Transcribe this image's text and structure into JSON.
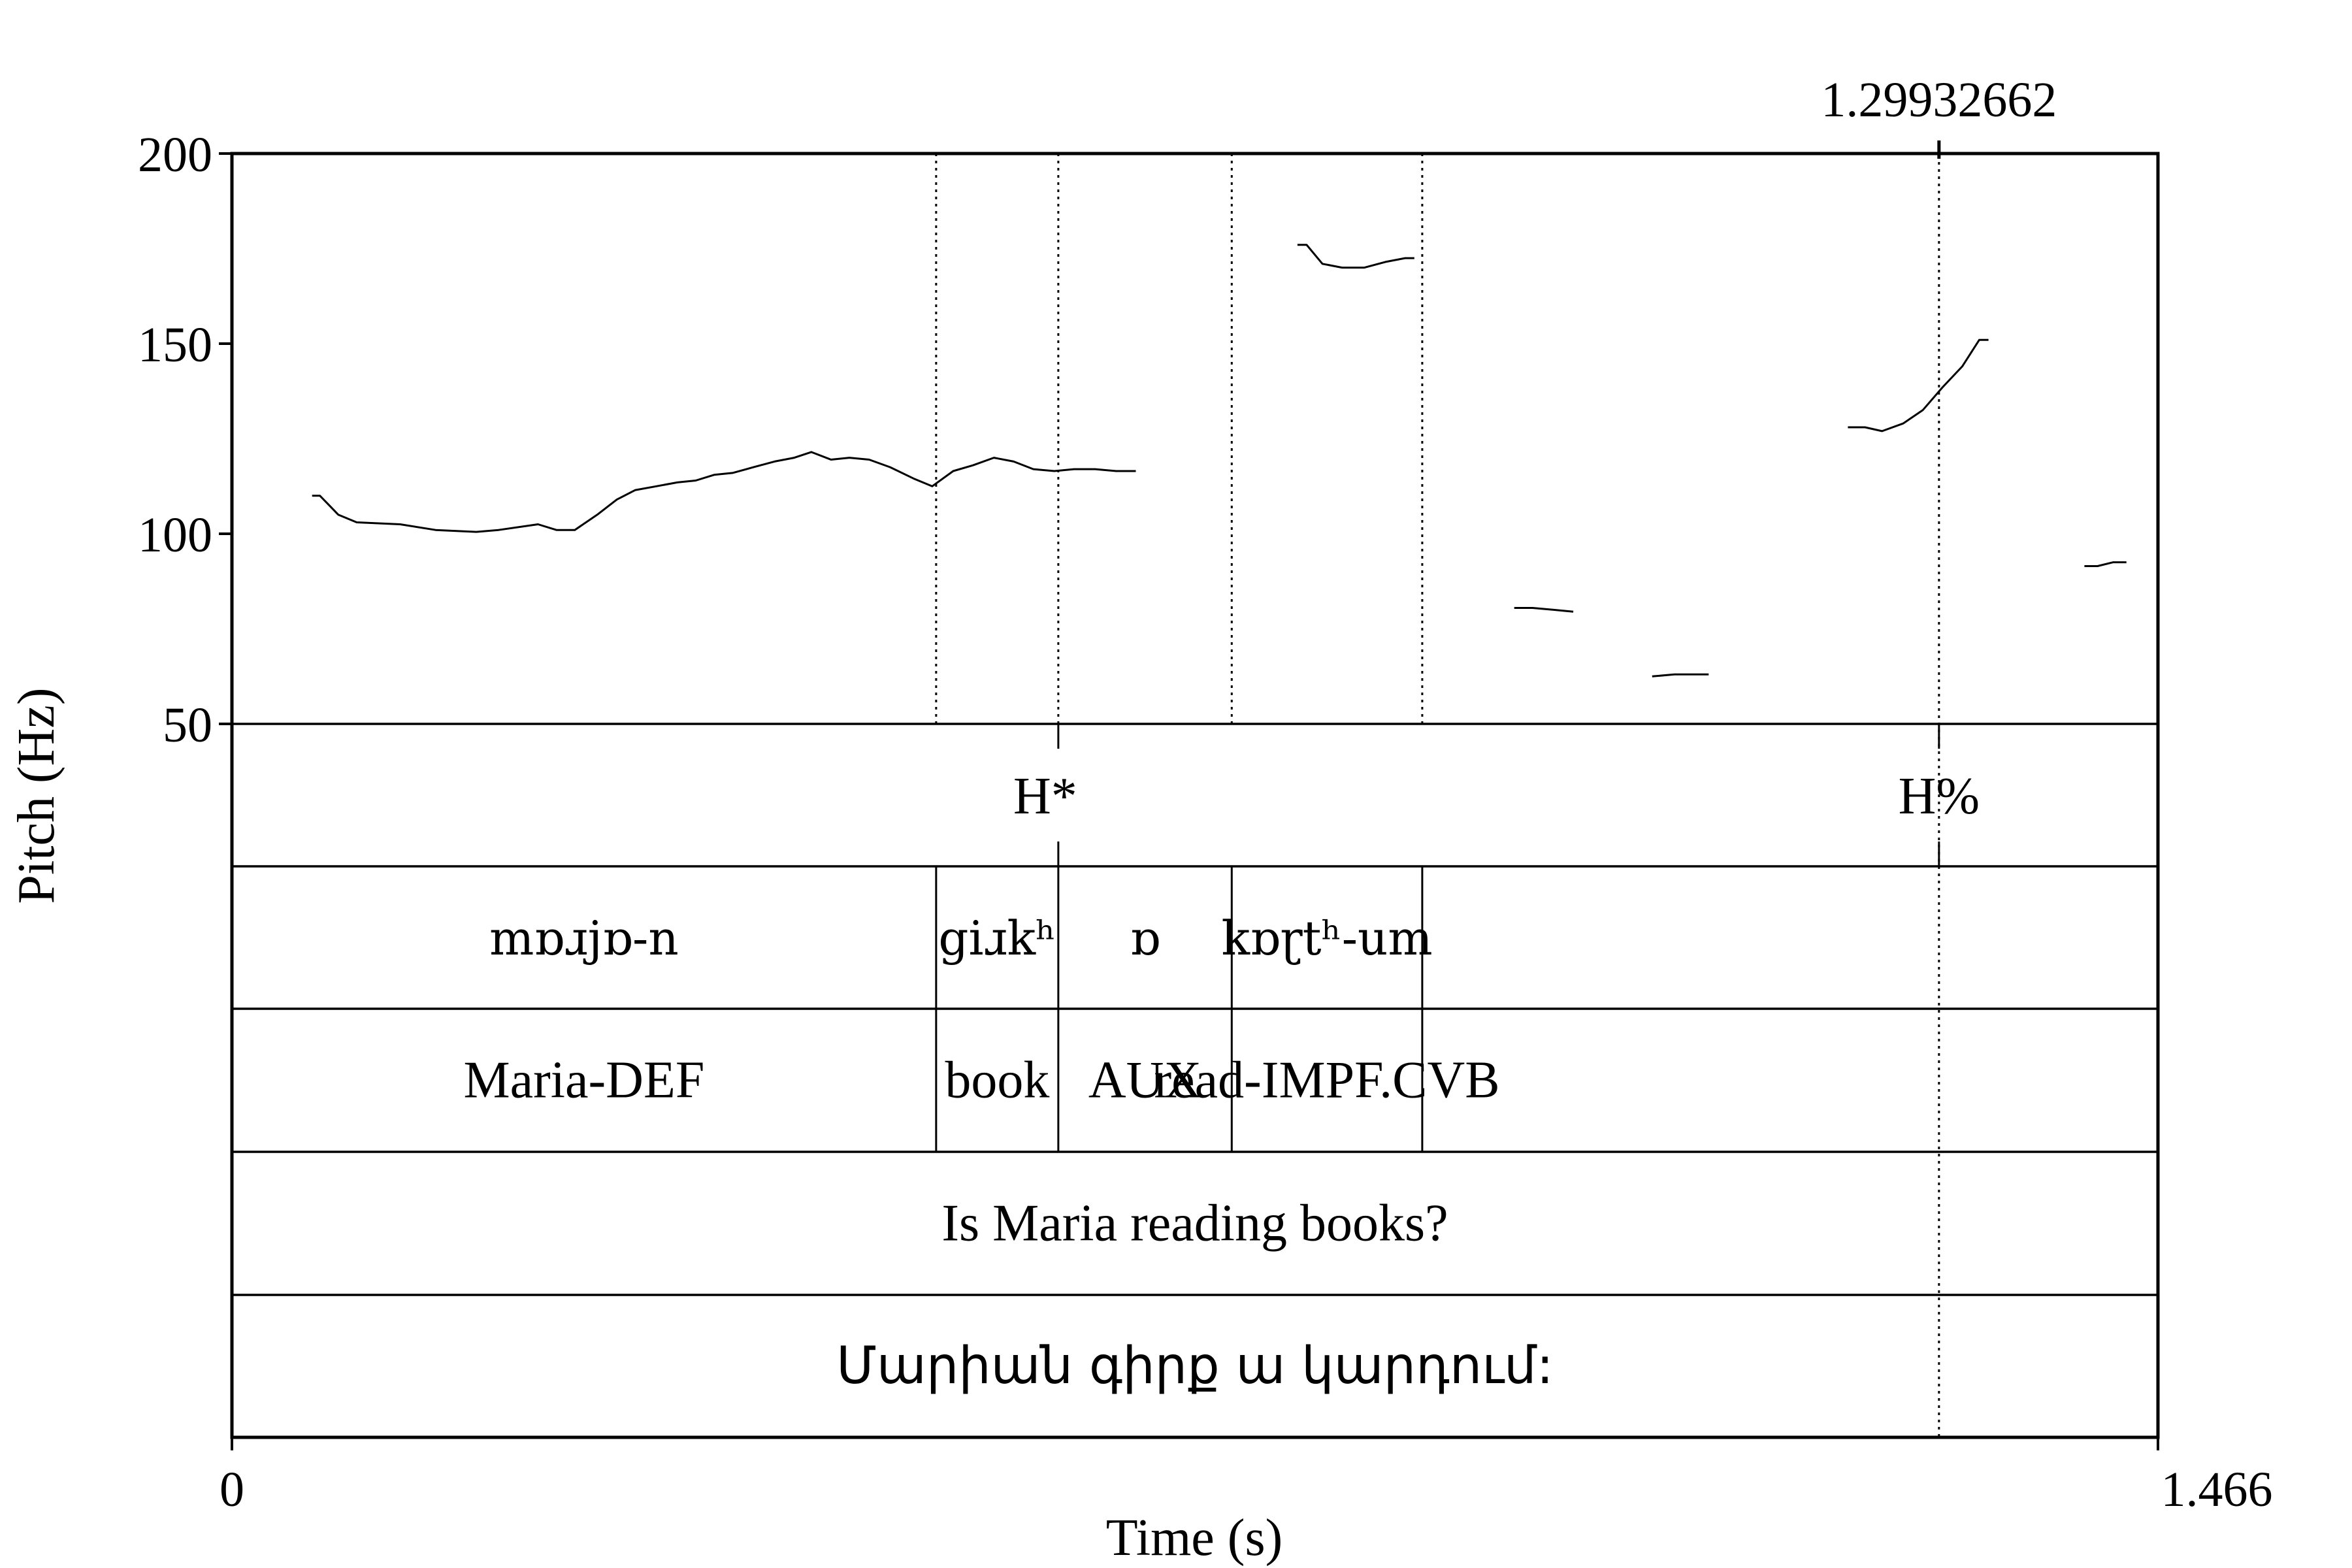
{
  "chart_data": {
    "type": "line",
    "ylabel": "Pitch (Hz)",
    "xlabel": "Time (s)",
    "xlim": [
      0,
      1.466
    ],
    "ylim": [
      50,
      200
    ],
    "x_tick_labels": [
      "0",
      "1.466"
    ],
    "y_ticks": [
      {
        "value": 200,
        "label": "200"
      },
      {
        "value": 150,
        "label": "150"
      },
      {
        "value": 100,
        "label": "100"
      },
      {
        "value": 50,
        "label": "50"
      }
    ],
    "cursor": {
      "time": 1.29932662,
      "label": "1.29932662"
    },
    "boundaries": [
      0.536,
      0.629,
      0.761,
      0.906
    ],
    "series": [
      {
        "points": [
          [
            0.061,
            110
          ],
          [
            0.067,
            110
          ],
          [
            0.081,
            105
          ],
          [
            0.095,
            103
          ],
          [
            0.128,
            102.5
          ],
          [
            0.155,
            101
          ],
          [
            0.186,
            100.5
          ],
          [
            0.203,
            101
          ],
          [
            0.233,
            102.5
          ],
          [
            0.247,
            101
          ],
          [
            0.261,
            101
          ],
          [
            0.278,
            105
          ],
          [
            0.293,
            109
          ],
          [
            0.307,
            111.5
          ],
          [
            0.323,
            112.5
          ],
          [
            0.339,
            113.5
          ],
          [
            0.353,
            114
          ],
          [
            0.367,
            115.5
          ],
          [
            0.381,
            116
          ],
          [
            0.397,
            117.5
          ],
          [
            0.413,
            119
          ],
          [
            0.428,
            120
          ],
          [
            0.441,
            121.5
          ],
          [
            0.456,
            119.5
          ],
          [
            0.47,
            120
          ],
          [
            0.485,
            119.5
          ],
          [
            0.501,
            117.5
          ],
          [
            0.519,
            114.5
          ],
          [
            0.533,
            112.5
          ],
          [
            0.549,
            116.5
          ],
          [
            0.564,
            118
          ],
          [
            0.58,
            120
          ],
          [
            0.595,
            119
          ],
          [
            0.61,
            117
          ],
          [
            0.626,
            116.5
          ],
          [
            0.641,
            117
          ],
          [
            0.657,
            117
          ],
          [
            0.673,
            116.5
          ],
          [
            0.688,
            116.5
          ]
        ]
      },
      {
        "points": [
          [
            0.811,
            176
          ],
          [
            0.818,
            176
          ],
          [
            0.83,
            171
          ],
          [
            0.845,
            170
          ],
          [
            0.862,
            170
          ],
          [
            0.878,
            171.5
          ],
          [
            0.893,
            172.5
          ],
          [
            0.9,
            172.5
          ]
        ]
      },
      {
        "points": [
          [
            0.976,
            80.5
          ],
          [
            0.99,
            80.5
          ],
          [
            1.006,
            80
          ],
          [
            1.021,
            79.5
          ]
        ]
      },
      {
        "points": [
          [
            1.081,
            62.5
          ],
          [
            1.098,
            63
          ],
          [
            1.112,
            63
          ],
          [
            1.124,
            63
          ]
        ]
      },
      {
        "points": [
          [
            1.23,
            128
          ],
          [
            1.243,
            128
          ],
          [
            1.256,
            127
          ],
          [
            1.272,
            129
          ],
          [
            1.287,
            132.5
          ],
          [
            1.302,
            138.5
          ],
          [
            1.317,
            144
          ],
          [
            1.33,
            151
          ],
          [
            1.337,
            151
          ]
        ]
      },
      {
        "points": [
          [
            1.41,
            91.5
          ],
          [
            1.42,
            91.5
          ],
          [
            1.432,
            92.5
          ],
          [
            1.442,
            92.5
          ]
        ]
      }
    ],
    "tiers": [
      {
        "name": "tones",
        "points": [
          {
            "time": 0.629,
            "label": "H*"
          },
          {
            "time": 1.29932662,
            "label": "H%"
          }
        ]
      },
      {
        "name": "ipa",
        "intervals": [
          "mɒɹjɒ-n",
          "giɹkʰ",
          "ɒ",
          "kɒɽtʰ-um"
        ]
      },
      {
        "name": "gloss",
        "intervals": [
          "Maria-DEF",
          "book",
          "AUX",
          "read-IMPF.CVB"
        ]
      },
      {
        "name": "translation",
        "intervals": [
          "Is Maria reading books?"
        ]
      },
      {
        "name": "armenian",
        "intervals": [
          "Մարիան գիրք ա կարդում:"
        ]
      }
    ]
  }
}
